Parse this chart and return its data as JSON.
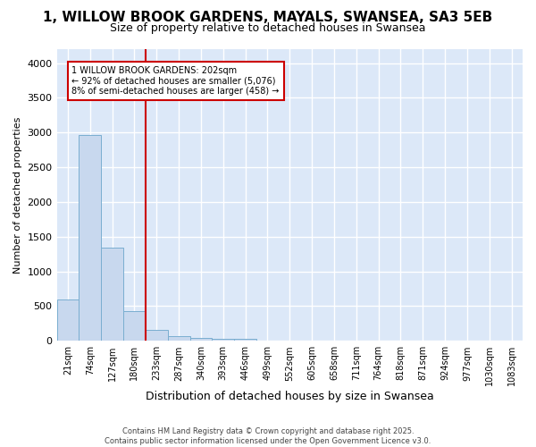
{
  "title_line1": "1, WILLOW BROOK GARDENS, MAYALS, SWANSEA, SA3 5EB",
  "title_line2": "Size of property relative to detached houses in Swansea",
  "xlabel": "Distribution of detached houses by size in Swansea",
  "ylabel": "Number of detached properties",
  "categories": [
    "21sqm",
    "74sqm",
    "127sqm",
    "180sqm",
    "233sqm",
    "287sqm",
    "340sqm",
    "393sqm",
    "446sqm",
    "499sqm",
    "552sqm",
    "605sqm",
    "658sqm",
    "711sqm",
    "764sqm",
    "818sqm",
    "871sqm",
    "924sqm",
    "977sqm",
    "1030sqm",
    "1083sqm"
  ],
  "values": [
    600,
    2970,
    1340,
    430,
    160,
    65,
    45,
    35,
    30,
    0,
    0,
    0,
    0,
    0,
    0,
    0,
    0,
    0,
    0,
    0,
    0
  ],
  "bar_color": "#c8d8ee",
  "bar_edge_color": "#7aaed0",
  "annotation_line1": "1 WILLOW BROOK GARDENS: 202sqm",
  "annotation_line2": "← 92% of detached houses are smaller (5,076)",
  "annotation_line3": "8% of semi-detached houses are larger (458) →",
  "annotation_box_color": "#ffffff",
  "annotation_box_edge": "#cc0000",
  "vline_color": "#cc0000",
  "ylim": [
    0,
    4200
  ],
  "yticks": [
    0,
    500,
    1000,
    1500,
    2000,
    2500,
    3000,
    3500,
    4000
  ],
  "background_color": "#ffffff",
  "plot_bg_color": "#dce8f8",
  "grid_color": "#ffffff",
  "footer_line1": "Contains HM Land Registry data © Crown copyright and database right 2025.",
  "footer_line2": "Contains public sector information licensed under the Open Government Licence v3.0."
}
